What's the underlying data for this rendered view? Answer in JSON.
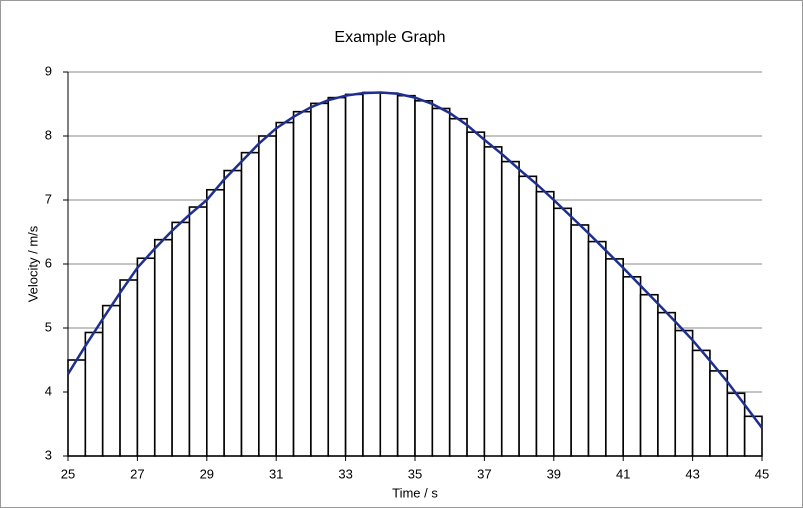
{
  "chart_data": {
    "type": "histogram",
    "title": "Example Graph",
    "xlabel": "Time / s",
    "ylabel": "Velocity / m/s",
    "bins": [
      25,
      25.5,
      26,
      26.5,
      27,
      27.5,
      28,
      28.5,
      29,
      29.5,
      30,
      30.5,
      31,
      31.5,
      32,
      32.5,
      33,
      33.5,
      34,
      34.5,
      35,
      35.5,
      36,
      36.5,
      37,
      37.5,
      38,
      38.5,
      39,
      39.5,
      40,
      40.5,
      41,
      41.5,
      42,
      42.5,
      43,
      43.5,
      44,
      44.5,
      45
    ],
    "values": [
      4.5,
      4.93,
      5.35,
      5.75,
      6.09,
      6.38,
      6.65,
      6.89,
      7.16,
      7.46,
      7.74,
      8.0,
      8.21,
      8.38,
      8.51,
      8.6,
      8.65,
      8.68,
      8.67,
      8.63,
      8.55,
      8.43,
      8.27,
      8.06,
      7.83,
      7.6,
      7.37,
      7.13,
      6.87,
      6.61,
      6.35,
      6.08,
      5.8,
      5.52,
      5.24,
      4.96,
      4.65,
      4.33,
      3.98,
      3.62
    ],
    "color": "#ffffff",
    "edge_color": "#000000",
    "line": {
      "color": "#1f2f8f",
      "x": [
        25,
        25.5,
        26,
        26.5,
        27,
        27.5,
        28,
        28.5,
        29,
        29.5,
        30,
        30.5,
        31,
        31.5,
        32,
        32.5,
        33,
        33.5,
        34,
        34.5,
        35,
        35.5,
        36,
        36.5,
        37,
        37.5,
        38,
        38.5,
        39,
        39.5,
        40,
        40.5,
        41,
        41.5,
        42,
        42.5,
        43,
        43.5,
        44,
        44.5,
        45
      ],
      "values": [
        4.28,
        4.72,
        5.14,
        5.55,
        5.94,
        6.24,
        6.52,
        6.77,
        7.0,
        7.32,
        7.6,
        7.88,
        8.12,
        8.3,
        8.45,
        8.56,
        8.63,
        8.67,
        8.68,
        8.66,
        8.6,
        8.5,
        8.36,
        8.17,
        7.94,
        7.72,
        7.48,
        7.25,
        7.0,
        6.74,
        6.48,
        6.21,
        5.94,
        5.66,
        5.38,
        5.1,
        4.81,
        4.49,
        4.16,
        3.8,
        3.44
      ]
    },
    "xlim": [
      25,
      45
    ],
    "ylim": [
      3,
      9
    ],
    "xticks": [
      25,
      27,
      29,
      31,
      33,
      35,
      37,
      39,
      41,
      43,
      45
    ],
    "yticks": [
      3,
      4,
      5,
      6,
      7,
      8,
      9
    ],
    "grid": true
  }
}
